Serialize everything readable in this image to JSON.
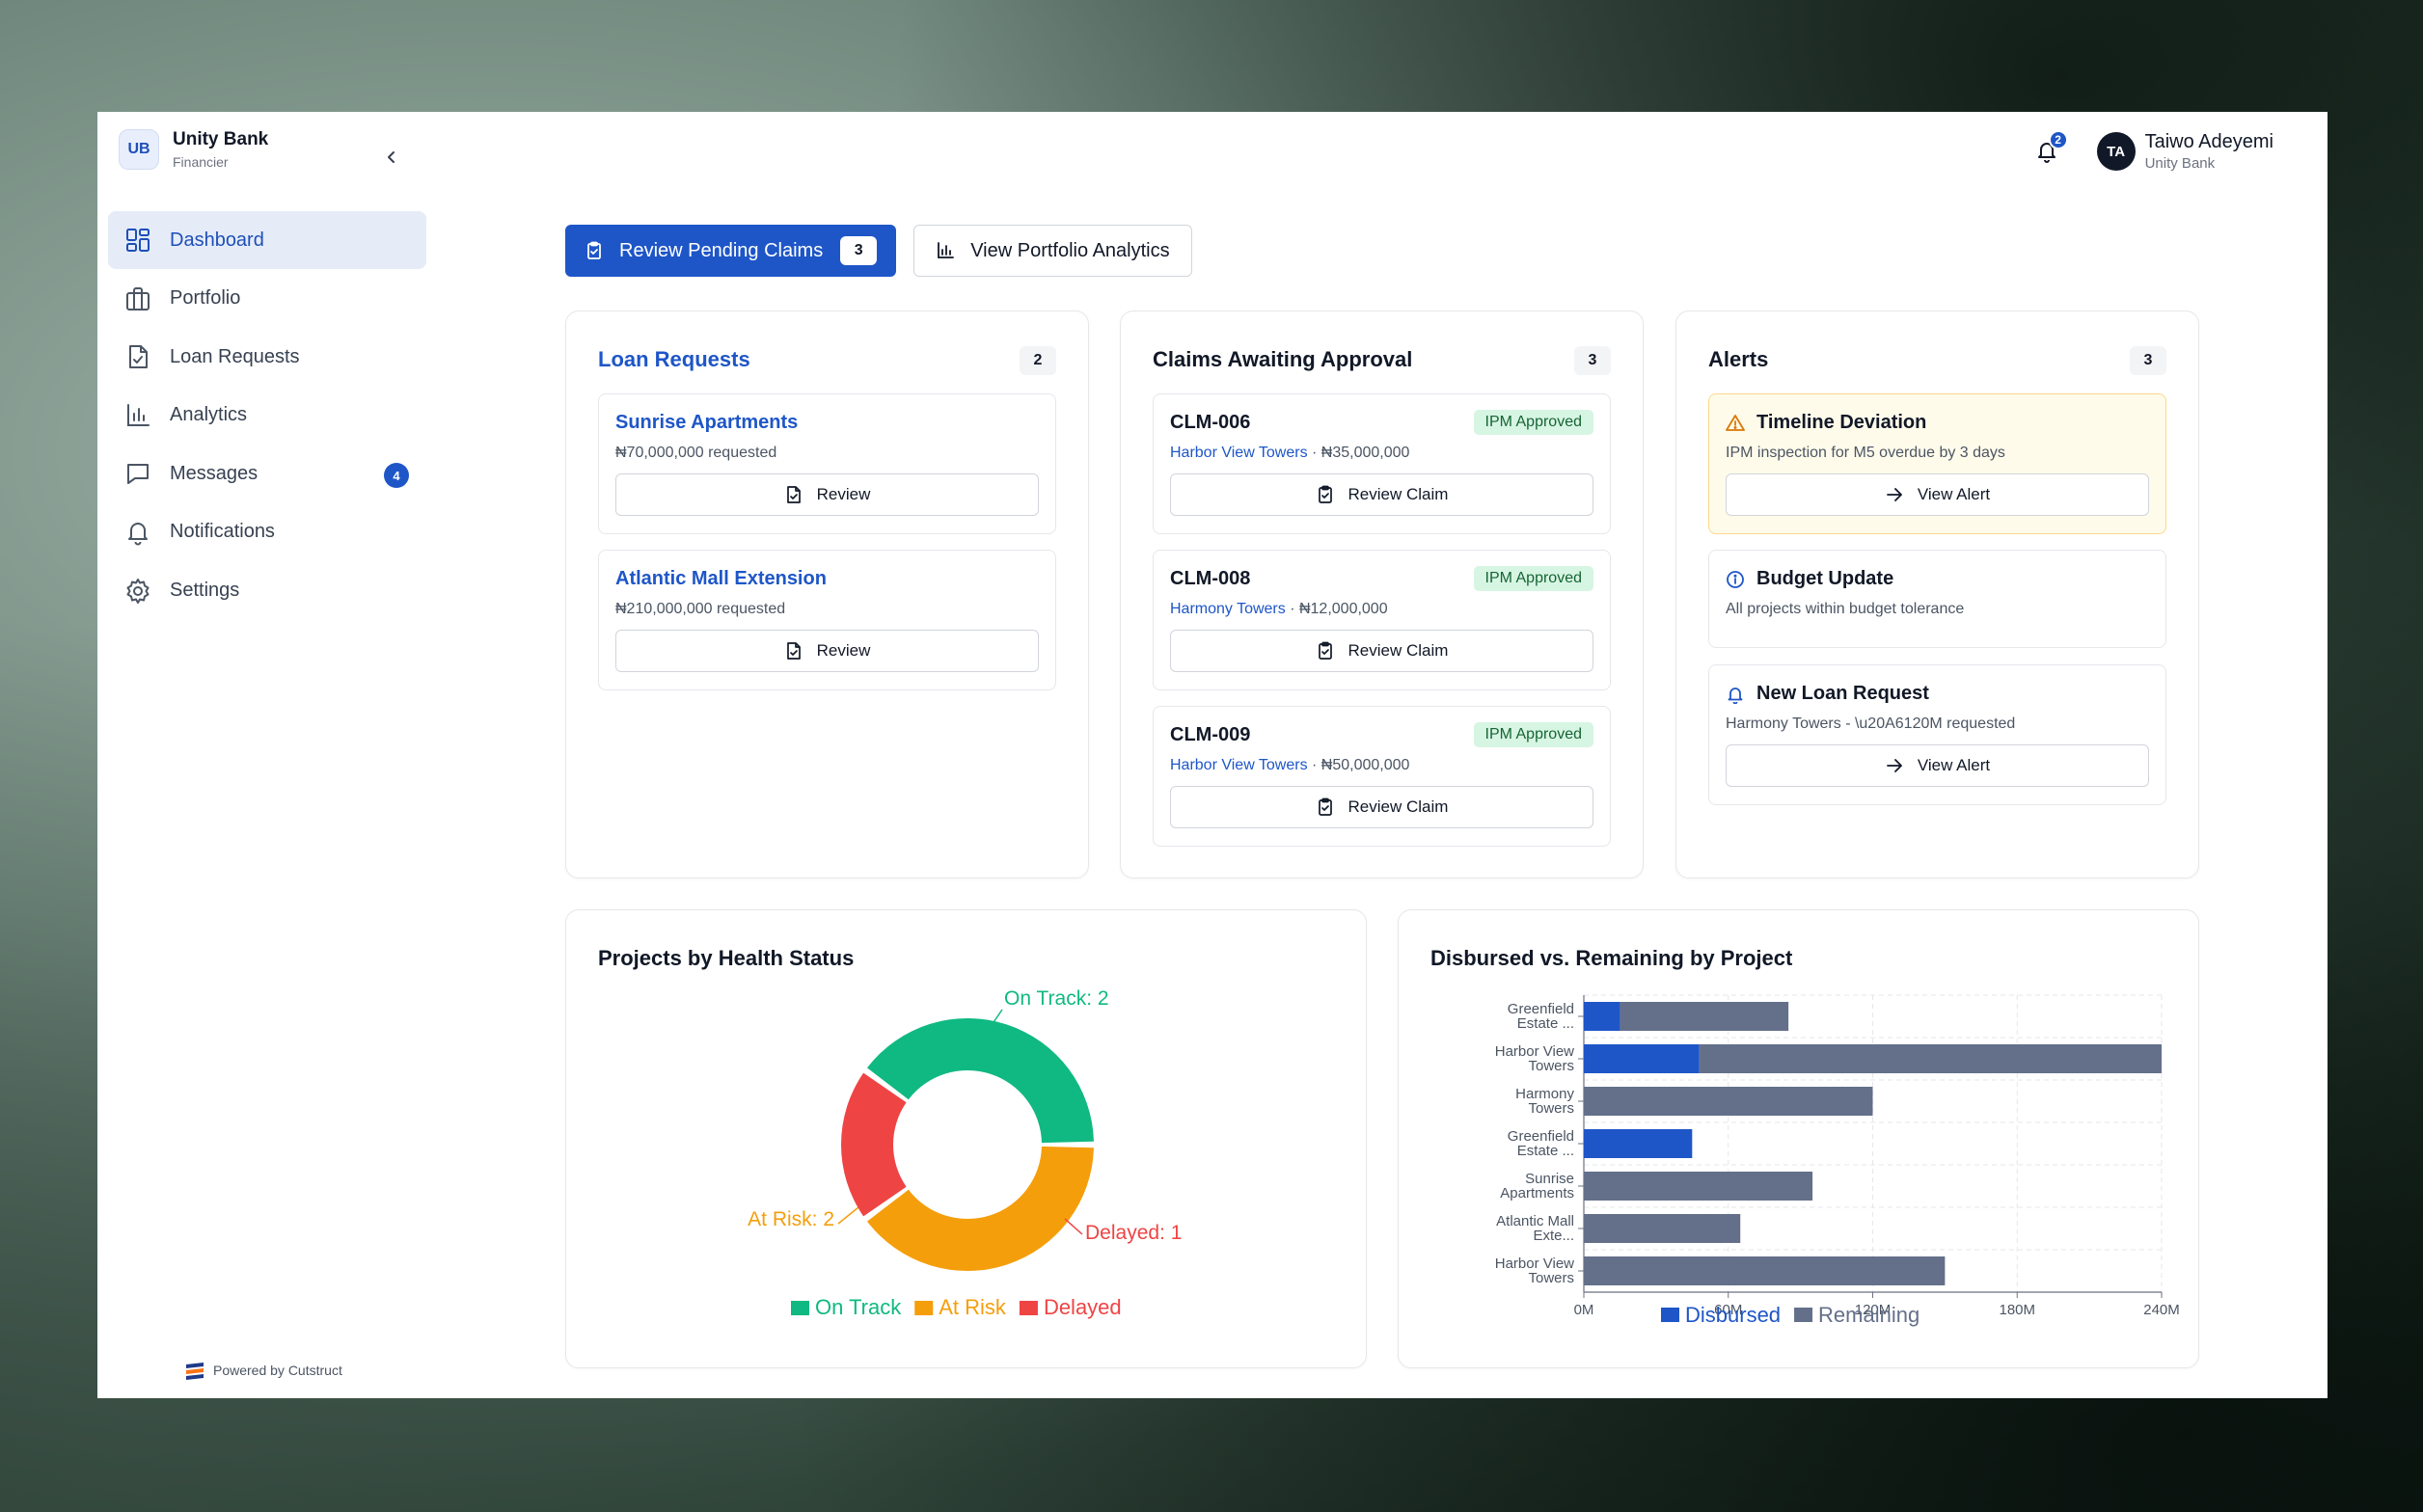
{
  "brand": {
    "logo": "UB",
    "name": "Unity Bank",
    "role": "Financier"
  },
  "nav": {
    "items": [
      {
        "label": "Dashboard",
        "icon": "dashboard-icon",
        "active": true
      },
      {
        "label": "Portfolio",
        "icon": "briefcase-icon"
      },
      {
        "label": "Loan Requests",
        "icon": "file-check-icon"
      },
      {
        "label": "Analytics",
        "icon": "bar-chart-icon"
      },
      {
        "label": "Messages",
        "icon": "message-icon",
        "badge": "4"
      },
      {
        "label": "Notifications",
        "icon": "bell-icon"
      },
      {
        "label": "Settings",
        "icon": "gear-icon"
      }
    ]
  },
  "footer": {
    "powered": "Powered by Cutstruct"
  },
  "header": {
    "notification_count": "2",
    "user": {
      "initials": "TA",
      "name": "Taiwo Adeyemi",
      "org": "Unity Bank"
    }
  },
  "actions": {
    "review_claims": {
      "label": "Review Pending Claims",
      "count": "3"
    },
    "view_analytics": {
      "label": "View Portfolio Analytics"
    }
  },
  "loan_requests": {
    "title": "Loan Requests",
    "count": "2",
    "items": [
      {
        "name": "Sunrise Apartments",
        "amount": "₦70,000,000 requested",
        "button": "Review"
      },
      {
        "name": "Atlantic Mall Extension",
        "amount": "₦210,000,000 requested",
        "button": "Review"
      }
    ]
  },
  "claims": {
    "title": "Claims Awaiting Approval",
    "count": "3",
    "items": [
      {
        "id": "CLM-006",
        "status": "IPM Approved",
        "project": "Harbor View Towers",
        "amount": " · ₦35,000,000",
        "button": "Review Claim"
      },
      {
        "id": "CLM-008",
        "status": "IPM Approved",
        "project": "Harmony Towers",
        "amount": " · ₦12,000,000",
        "button": "Review Claim"
      },
      {
        "id": "CLM-009",
        "status": "IPM Approved",
        "project": "Harbor View Towers",
        "amount": " · ₦50,000,000",
        "button": "Review Claim"
      }
    ]
  },
  "alerts": {
    "title": "Alerts",
    "count": "3",
    "items": [
      {
        "title": "Timeline Deviation",
        "text": "IPM inspection for M5 overdue by 3 days",
        "button": "View Alert",
        "icon": "warning-icon"
      },
      {
        "title": "Budget Update",
        "text": "All projects within budget tolerance",
        "icon": "info-icon"
      },
      {
        "title": "New Loan Request",
        "text": "Harmony Towers - \\u20A6120M requested",
        "button": "View Alert",
        "icon": "bell-icon"
      }
    ]
  },
  "colors": {
    "primary": "#1e56c7",
    "on_track": "#10b981",
    "at_risk": "#f59e0b",
    "delayed": "#ef4444",
    "disbursed": "#1e56c7",
    "remaining": "#64708a"
  },
  "chart_data": [
    {
      "type": "pie",
      "title": "Projects by Health Status",
      "categories": [
        "On Track",
        "At Risk",
        "Delayed"
      ],
      "values": [
        2,
        2,
        1
      ],
      "slice_labels": [
        "On Track: 2",
        "At Risk: 2",
        "Delayed: 1"
      ],
      "legend": "bottom"
    },
    {
      "type": "bar",
      "orientation": "horizontal",
      "stacked": true,
      "title": "Disbursed vs. Remaining by Project",
      "categories": [
        [
          "Greenfield",
          "Estate ..."
        ],
        [
          "Harbor View",
          "Towers"
        ],
        [
          "Harmony",
          "Towers"
        ],
        [
          "Greenfield",
          "Estate ..."
        ],
        [
          "Sunrise",
          "Apartments"
        ],
        [
          "Atlantic Mall",
          "Exte..."
        ],
        [
          "Harbor View",
          "Towers"
        ]
      ],
      "series": [
        {
          "name": "Disbursed",
          "values": [
            15,
            48,
            0,
            45,
            0,
            0,
            0
          ]
        },
        {
          "name": "Remaining",
          "values": [
            70,
            192,
            120,
            0,
            95,
            65,
            150
          ]
        }
      ],
      "xlim": [
        0,
        240
      ],
      "x_ticks": [
        "0M",
        "60M",
        "120M",
        "180M",
        "240M"
      ],
      "grid": true,
      "legend": "bottom"
    }
  ]
}
